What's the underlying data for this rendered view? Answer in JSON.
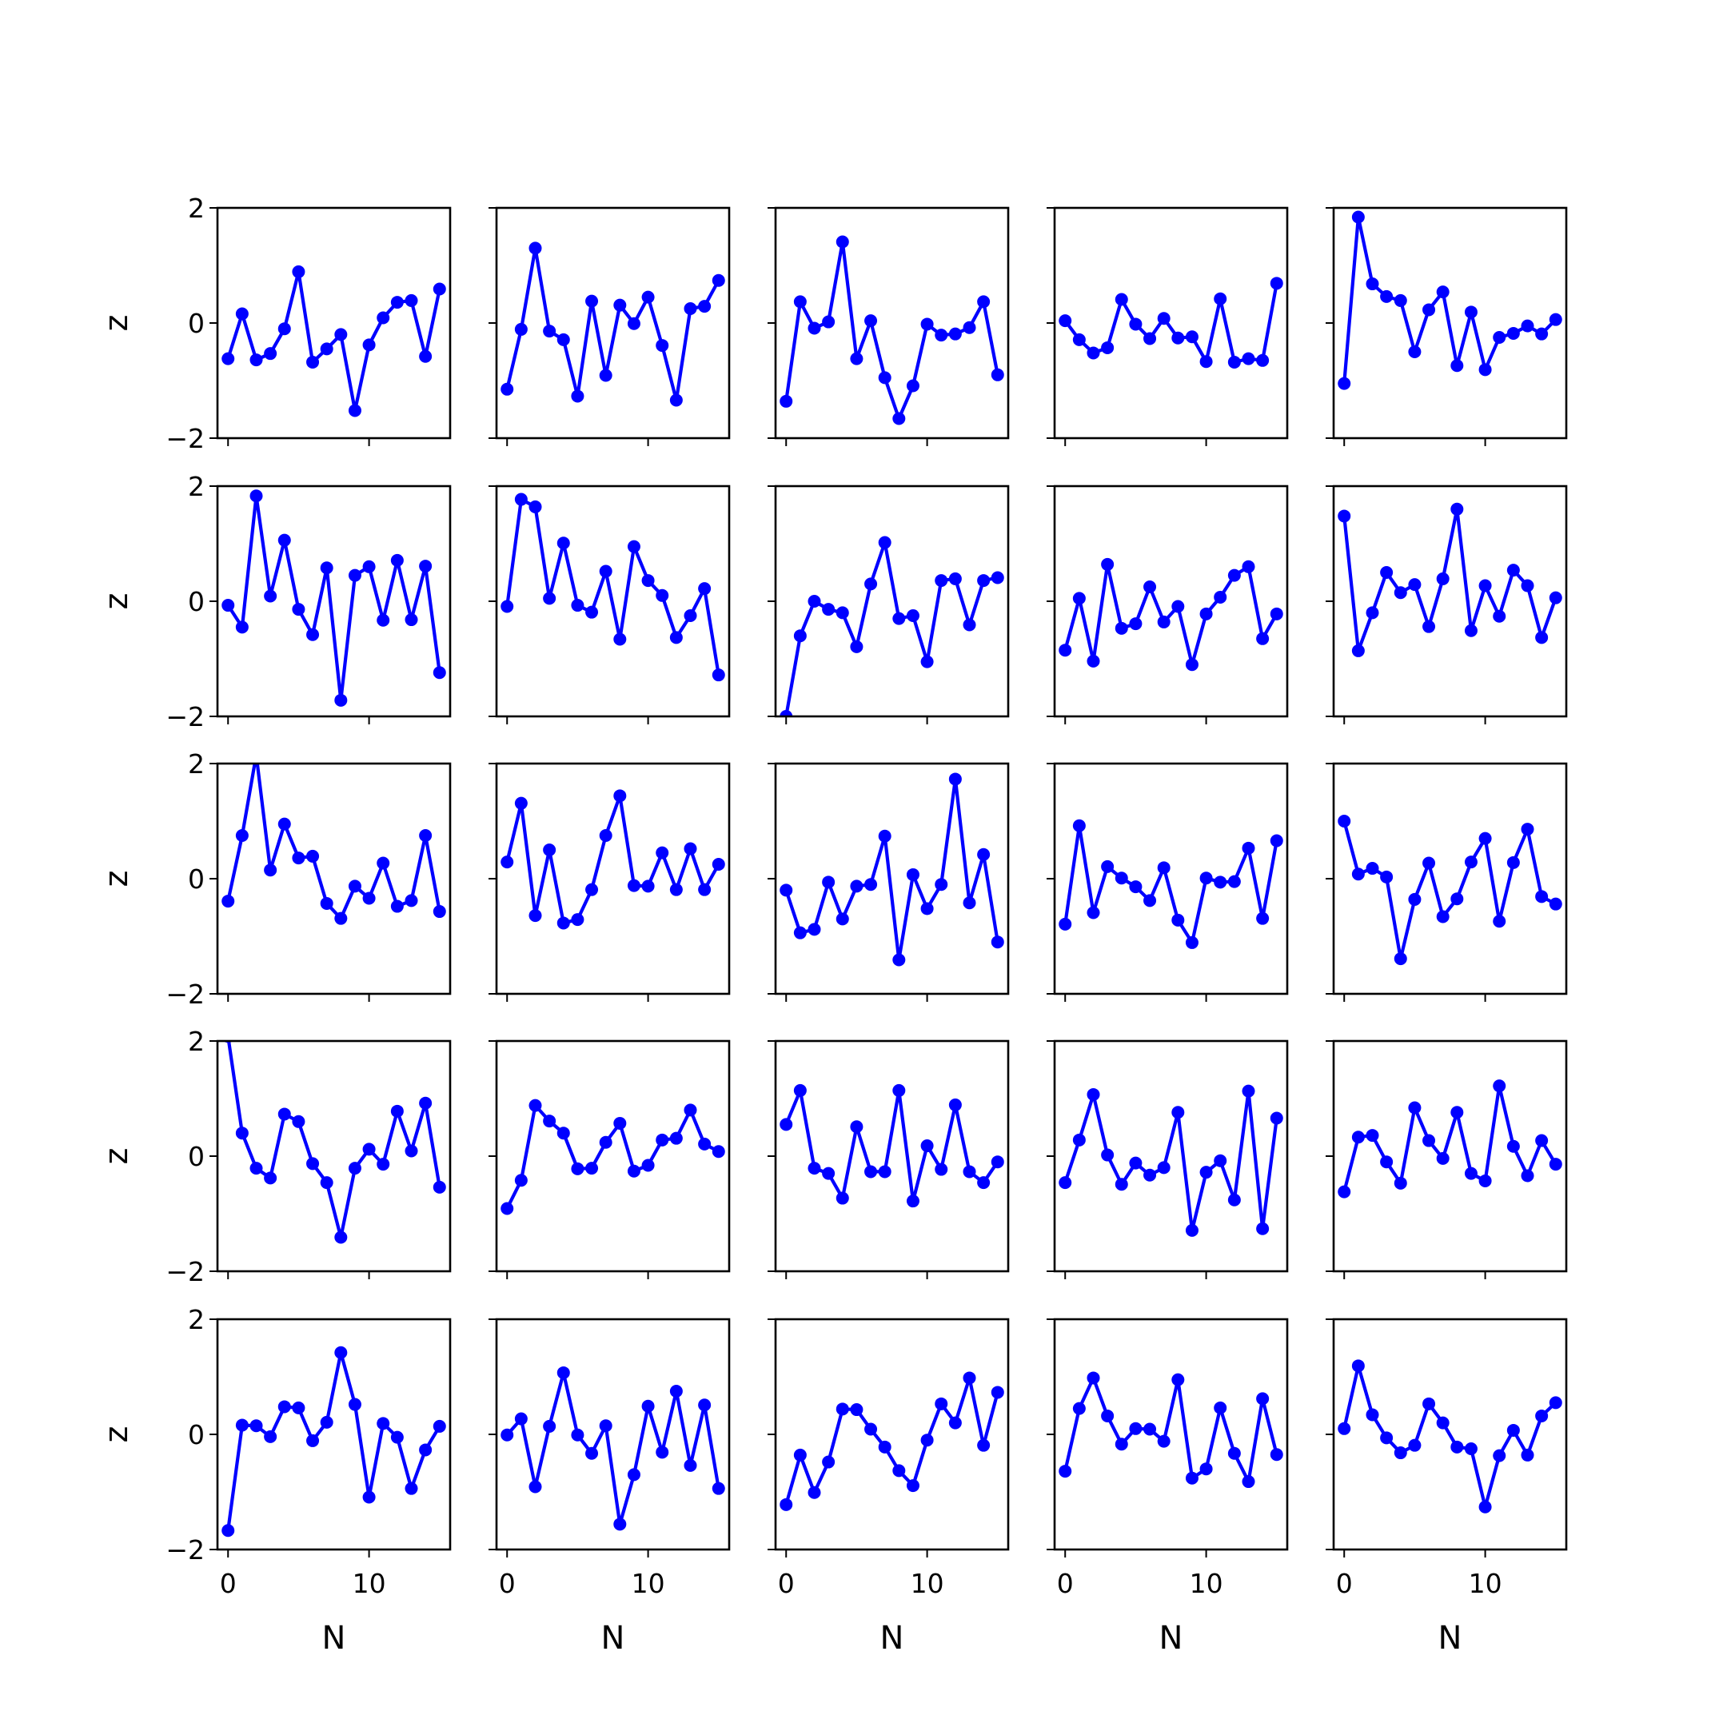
{
  "figure": {
    "line_color": "#0000ff",
    "marker": "circle",
    "xlabel": "N",
    "ylabel": "z",
    "xlim": [
      -0.75,
      15.75
    ],
    "ylim": [
      -2,
      2
    ],
    "yticks": [
      2,
      0,
      -2
    ],
    "ytick_labels": [
      "2",
      "0",
      "−2"
    ],
    "xticks": [
      0,
      10
    ],
    "xtick_labels": [
      "0",
      "10"
    ]
  },
  "chart_data": [
    {
      "type": "line",
      "row": 1,
      "col": 1,
      "x": [
        0,
        1,
        2,
        3,
        4,
        5,
        6,
        7,
        8,
        9,
        10,
        11,
        12,
        13,
        14,
        15
      ],
      "y": [
        -0.62,
        0.16,
        -0.64,
        -0.53,
        -0.1,
        0.89,
        -0.68,
        -0.45,
        -0.2,
        -1.52,
        -0.38,
        0.09,
        0.36,
        0.39,
        -0.58,
        0.59
      ]
    },
    {
      "type": "line",
      "row": 1,
      "col": 2,
      "x": [
        0,
        1,
        2,
        3,
        4,
        5,
        6,
        7,
        8,
        9,
        10,
        11,
        12,
        13,
        14,
        15
      ],
      "y": [
        -1.15,
        -0.11,
        1.3,
        -0.14,
        -0.29,
        -1.27,
        0.38,
        -0.91,
        0.31,
        -0.01,
        0.45,
        -0.39,
        -1.34,
        0.25,
        0.29,
        0.74
      ]
    },
    {
      "type": "line",
      "row": 1,
      "col": 3,
      "x": [
        0,
        1,
        2,
        3,
        4,
        5,
        6,
        7,
        8,
        9,
        10,
        11,
        12,
        13,
        14,
        15
      ],
      "y": [
        -1.36,
        0.37,
        -0.09,
        0.02,
        1.41,
        -0.62,
        0.04,
        -0.95,
        -1.66,
        -1.09,
        -0.02,
        -0.21,
        -0.19,
        -0.08,
        0.37,
        -0.9
      ]
    },
    {
      "type": "line",
      "row": 1,
      "col": 4,
      "x": [
        0,
        1,
        2,
        3,
        4,
        5,
        6,
        7,
        8,
        9,
        10,
        11,
        12,
        13,
        14,
        15
      ],
      "y": [
        0.04,
        -0.29,
        -0.52,
        -0.43,
        0.41,
        -0.02,
        -0.27,
        0.08,
        -0.26,
        -0.24,
        -0.67,
        0.42,
        -0.68,
        -0.62,
        -0.65,
        0.69
      ]
    },
    {
      "type": "line",
      "row": 1,
      "col": 5,
      "x": [
        0,
        1,
        2,
        3,
        4,
        5,
        6,
        7,
        8,
        9,
        10,
        11,
        12,
        13,
        14,
        15
      ],
      "y": [
        -1.05,
        1.84,
        0.68,
        0.46,
        0.39,
        -0.5,
        0.23,
        0.54,
        -0.74,
        0.19,
        -0.81,
        -0.25,
        -0.18,
        -0.05,
        -0.19,
        0.06
      ]
    },
    {
      "type": "line",
      "row": 2,
      "col": 1,
      "x": [
        0,
        1,
        2,
        3,
        4,
        5,
        6,
        7,
        8,
        9,
        10,
        11,
        12,
        13,
        14,
        15
      ],
      "y": [
        -0.07,
        -0.45,
        1.83,
        0.09,
        1.06,
        -0.14,
        -0.58,
        0.58,
        -1.72,
        0.45,
        0.6,
        -0.33,
        0.71,
        -0.32,
        0.61,
        -1.24
      ]
    },
    {
      "type": "line",
      "row": 2,
      "col": 2,
      "x": [
        0,
        1,
        2,
        3,
        4,
        5,
        6,
        7,
        8,
        9,
        10,
        11,
        12,
        13,
        14,
        15
      ],
      "y": [
        -0.09,
        1.77,
        1.64,
        0.05,
        1.01,
        -0.07,
        -0.19,
        0.52,
        -0.66,
        0.95,
        0.36,
        0.1,
        -0.63,
        -0.25,
        0.22,
        -1.28
      ]
    },
    {
      "type": "line",
      "row": 2,
      "col": 3,
      "x": [
        0,
        1,
        2,
        3,
        4,
        5,
        6,
        7,
        8,
        9,
        10,
        11,
        12,
        13,
        14,
        15
      ],
      "y": [
        -2.0,
        -0.6,
        0.0,
        -0.14,
        -0.2,
        -0.79,
        0.3,
        1.02,
        -0.3,
        -0.25,
        -1.05,
        0.36,
        0.39,
        -0.41,
        0.36,
        0.41
      ]
    },
    {
      "type": "line",
      "row": 2,
      "col": 4,
      "x": [
        0,
        1,
        2,
        3,
        4,
        5,
        6,
        7,
        8,
        9,
        10,
        11,
        12,
        13,
        14,
        15
      ],
      "y": [
        -0.85,
        0.05,
        -1.04,
        0.64,
        -0.47,
        -0.39,
        0.25,
        -0.36,
        -0.09,
        -1.1,
        -0.22,
        0.07,
        0.45,
        0.6,
        -0.65,
        -0.22
      ]
    },
    {
      "type": "line",
      "row": 2,
      "col": 5,
      "x": [
        0,
        1,
        2,
        3,
        4,
        5,
        6,
        7,
        8,
        9,
        10,
        11,
        12,
        13,
        14,
        15
      ],
      "y": [
        1.48,
        -0.86,
        -0.2,
        0.5,
        0.15,
        0.29,
        -0.44,
        0.39,
        1.6,
        -0.51,
        0.27,
        -0.26,
        0.54,
        0.27,
        -0.63,
        0.06
      ]
    },
    {
      "type": "line",
      "row": 3,
      "col": 1,
      "x": [
        0,
        1,
        2,
        3,
        4,
        5,
        6,
        7,
        8,
        9,
        10,
        11,
        12,
        13,
        14,
        15
      ],
      "y": [
        -0.39,
        0.75,
        2.15,
        0.15,
        0.95,
        0.36,
        0.39,
        -0.43,
        -0.69,
        -0.13,
        -0.34,
        0.27,
        -0.48,
        -0.38,
        0.75,
        -0.57
      ]
    },
    {
      "type": "line",
      "row": 3,
      "col": 2,
      "x": [
        0,
        1,
        2,
        3,
        4,
        5,
        6,
        7,
        8,
        9,
        10,
        11,
        12,
        13,
        14,
        15
      ],
      "y": [
        0.29,
        1.31,
        -0.64,
        0.5,
        -0.77,
        -0.71,
        -0.19,
        0.75,
        1.44,
        -0.12,
        -0.13,
        0.45,
        -0.19,
        0.52,
        -0.19,
        0.25
      ]
    },
    {
      "type": "line",
      "row": 3,
      "col": 3,
      "x": [
        0,
        1,
        2,
        3,
        4,
        5,
        6,
        7,
        8,
        9,
        10,
        11,
        12,
        13,
        14,
        15
      ],
      "y": [
        -0.2,
        -0.94,
        -0.88,
        -0.06,
        -0.7,
        -0.13,
        -0.1,
        0.74,
        -1.41,
        0.07,
        -0.52,
        -0.1,
        1.73,
        -0.42,
        0.42,
        -1.1
      ]
    },
    {
      "type": "line",
      "row": 3,
      "col": 4,
      "x": [
        0,
        1,
        2,
        3,
        4,
        5,
        6,
        7,
        8,
        9,
        10,
        11,
        12,
        13,
        14,
        15
      ],
      "y": [
        -0.79,
        0.92,
        -0.59,
        0.21,
        0.01,
        -0.14,
        -0.38,
        0.19,
        -0.72,
        -1.11,
        0.01,
        -0.06,
        -0.05,
        0.53,
        -0.69,
        0.66
      ]
    },
    {
      "type": "line",
      "row": 3,
      "col": 5,
      "x": [
        0,
        1,
        2,
        3,
        4,
        5,
        6,
        7,
        8,
        9,
        10,
        11,
        12,
        13,
        14,
        15
      ],
      "y": [
        1.0,
        0.08,
        0.18,
        0.03,
        -1.39,
        -0.36,
        0.27,
        -0.66,
        -0.35,
        0.29,
        0.7,
        -0.74,
        0.28,
        0.86,
        -0.31,
        -0.44
      ]
    },
    {
      "type": "line",
      "row": 4,
      "col": 1,
      "x": [
        0,
        1,
        2,
        3,
        4,
        5,
        6,
        7,
        8,
        9,
        10,
        11,
        12,
        13,
        14,
        15
      ],
      "y": [
        2.08,
        0.4,
        -0.21,
        -0.38,
        0.73,
        0.6,
        -0.13,
        -0.46,
        -1.41,
        -0.21,
        0.12,
        -0.14,
        0.78,
        0.09,
        0.92,
        -0.54
      ]
    },
    {
      "type": "line",
      "row": 4,
      "col": 2,
      "x": [
        0,
        1,
        2,
        3,
        4,
        5,
        6,
        7,
        8,
        9,
        10,
        11,
        12,
        13,
        14,
        15
      ],
      "y": [
        -0.91,
        -0.42,
        0.88,
        0.61,
        0.4,
        -0.22,
        -0.21,
        0.24,
        0.57,
        -0.26,
        -0.16,
        0.28,
        0.31,
        0.8,
        0.21,
        0.08
      ]
    },
    {
      "type": "line",
      "row": 4,
      "col": 3,
      "x": [
        0,
        1,
        2,
        3,
        4,
        5,
        6,
        7,
        8,
        9,
        10,
        11,
        12,
        13,
        14,
        15
      ],
      "y": [
        0.55,
        1.14,
        -0.21,
        -0.3,
        -0.73,
        0.51,
        -0.27,
        -0.27,
        1.14,
        -0.78,
        0.18,
        -0.23,
        0.89,
        -0.27,
        -0.46,
        -0.1
      ]
    },
    {
      "type": "line",
      "row": 4,
      "col": 4,
      "x": [
        0,
        1,
        2,
        3,
        4,
        5,
        6,
        7,
        8,
        9,
        10,
        11,
        12,
        13,
        14,
        15
      ],
      "y": [
        -0.46,
        0.28,
        1.07,
        0.02,
        -0.49,
        -0.12,
        -0.33,
        -0.2,
        0.76,
        -1.29,
        -0.28,
        -0.08,
        -0.76,
        1.13,
        -1.26,
        0.66
      ]
    },
    {
      "type": "line",
      "row": 4,
      "col": 5,
      "x": [
        0,
        1,
        2,
        3,
        4,
        5,
        6,
        7,
        8,
        9,
        10,
        11,
        12,
        13,
        14,
        15
      ],
      "y": [
        -0.62,
        0.33,
        0.36,
        -0.1,
        -0.47,
        0.84,
        0.27,
        -0.04,
        0.76,
        -0.3,
        -0.43,
        1.22,
        0.17,
        -0.34,
        0.27,
        -0.14
      ]
    },
    {
      "type": "line",
      "row": 5,
      "col": 1,
      "x": [
        0,
        1,
        2,
        3,
        4,
        5,
        6,
        7,
        8,
        9,
        10,
        11,
        12,
        13,
        14,
        15
      ],
      "y": [
        -1.67,
        0.16,
        0.15,
        -0.04,
        0.48,
        0.46,
        -0.11,
        0.21,
        1.42,
        0.52,
        -1.09,
        0.19,
        -0.05,
        -0.94,
        -0.27,
        0.14
      ]
    },
    {
      "type": "line",
      "row": 5,
      "col": 2,
      "x": [
        0,
        1,
        2,
        3,
        4,
        5,
        6,
        7,
        8,
        9,
        10,
        11,
        12,
        13,
        14,
        15
      ],
      "y": [
        -0.01,
        0.27,
        -0.91,
        0.14,
        1.07,
        -0.01,
        -0.33,
        0.15,
        -1.56,
        -0.7,
        0.49,
        -0.31,
        0.75,
        -0.54,
        0.51,
        -0.94
      ]
    },
    {
      "type": "line",
      "row": 5,
      "col": 3,
      "x": [
        0,
        1,
        2,
        3,
        4,
        5,
        6,
        7,
        8,
        9,
        10,
        11,
        12,
        13,
        14,
        15
      ],
      "y": [
        -1.22,
        -0.36,
        -1.01,
        -0.48,
        0.44,
        0.43,
        0.09,
        -0.22,
        -0.63,
        -0.89,
        -0.1,
        0.53,
        0.2,
        0.98,
        -0.19,
        0.73
      ]
    },
    {
      "type": "line",
      "row": 5,
      "col": 4,
      "x": [
        0,
        1,
        2,
        3,
        4,
        5,
        6,
        7,
        8,
        9,
        10,
        11,
        12,
        13,
        14,
        15
      ],
      "y": [
        -0.64,
        0.45,
        0.98,
        0.32,
        -0.17,
        0.1,
        0.09,
        -0.12,
        0.95,
        -0.76,
        -0.6,
        0.46,
        -0.33,
        -0.82,
        0.62,
        -0.35
      ]
    },
    {
      "type": "line",
      "row": 5,
      "col": 5,
      "x": [
        0,
        1,
        2,
        3,
        4,
        5,
        6,
        7,
        8,
        9,
        10,
        11,
        12,
        13,
        14,
        15
      ],
      "y": [
        0.1,
        1.19,
        0.34,
        -0.06,
        -0.32,
        -0.19,
        0.53,
        0.2,
        -0.22,
        -0.25,
        -1.26,
        -0.37,
        0.07,
        -0.36,
        0.32,
        0.55
      ]
    }
  ]
}
